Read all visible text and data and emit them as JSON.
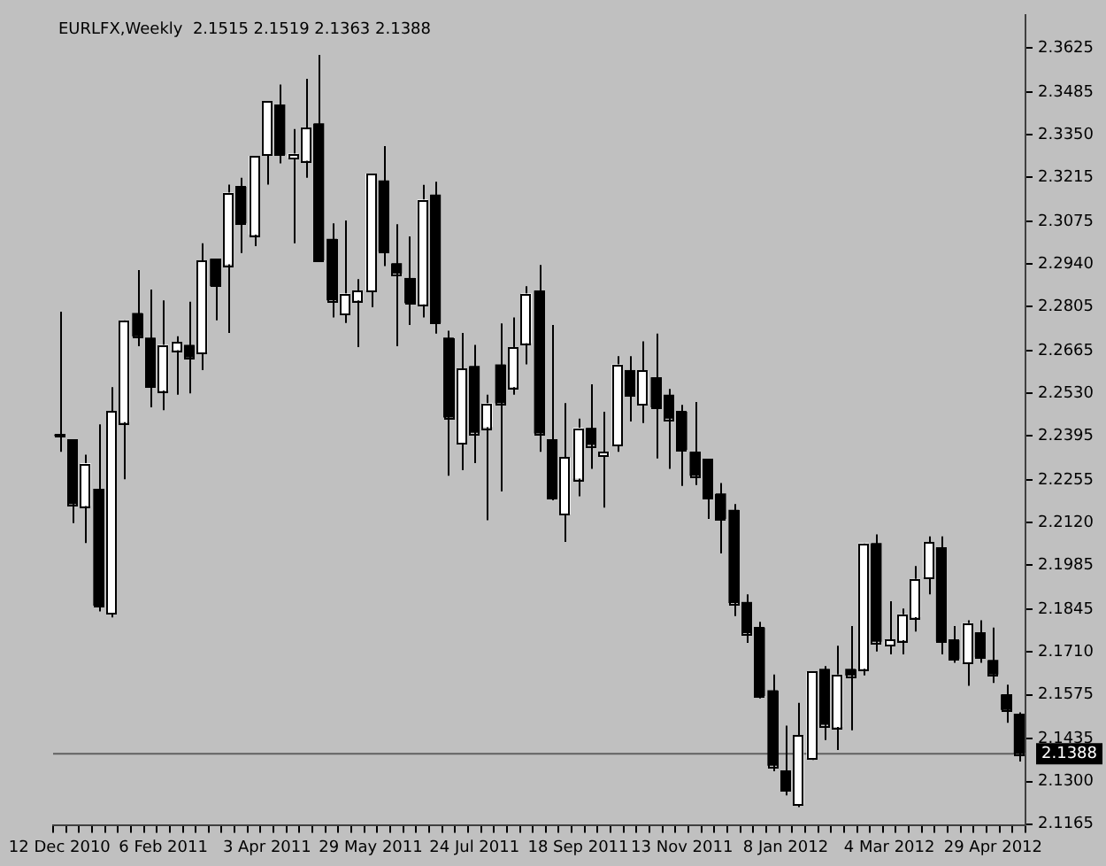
{
  "chart_data": {
    "type": "candlestick",
    "title": "EURLFX,Weekly  2.1515 2.1519 2.1363 2.1388",
    "categories": [
      "12 Dec 2010",
      null,
      null,
      null,
      null,
      null,
      null,
      null,
      "6 Feb 2011",
      null,
      null,
      null,
      null,
      null,
      null,
      null,
      "3 Apr 2011",
      null,
      null,
      null,
      null,
      null,
      null,
      null,
      "29 May 2011",
      null,
      null,
      null,
      null,
      null,
      null,
      null,
      "24 Jul 2011",
      null,
      null,
      null,
      null,
      null,
      null,
      null,
      "18 Sep 2011",
      null,
      null,
      null,
      null,
      null,
      null,
      null,
      "13 Nov 2011",
      null,
      null,
      null,
      null,
      null,
      null,
      null,
      "8 Jan 2012",
      null,
      null,
      null,
      null,
      null,
      null,
      null,
      "4 Mar 2012",
      null,
      null,
      null,
      null,
      null,
      null,
      null,
      "29 Apr 2012",
      null,
      null
    ],
    "ohlc": [
      [
        2.24,
        2.2789,
        2.2345,
        2.2395
      ],
      [
        2.2385,
        2.2385,
        2.2119,
        2.2179
      ],
      [
        2.2173,
        2.2336,
        2.2056,
        2.2309
      ],
      [
        2.2228,
        2.2432,
        2.1839,
        2.1857
      ],
      [
        2.1833,
        2.255,
        2.182,
        2.2472
      ],
      [
        2.2439,
        2.2762,
        2.2258,
        2.2762
      ],
      [
        2.2785,
        2.2921,
        2.268,
        2.2711
      ],
      [
        2.2707,
        2.2859,
        2.2486,
        2.2553
      ],
      [
        2.2539,
        2.2825,
        2.2477,
        2.2684
      ],
      [
        2.2667,
        2.2711,
        2.2526,
        2.2693
      ],
      [
        2.2684,
        2.2821,
        2.253,
        2.2644
      ],
      [
        2.266,
        2.3006,
        2.2604,
        2.2952
      ],
      [
        2.2957,
        2.2957,
        2.2762,
        2.287
      ],
      [
        2.2939,
        2.3192,
        2.2722,
        2.3167
      ],
      [
        2.3185,
        2.3214,
        2.2975,
        2.3069
      ],
      [
        2.3033,
        2.3283,
        2.2997,
        2.3283
      ],
      [
        2.3287,
        2.3455,
        2.3192,
        2.3455
      ],
      [
        2.3446,
        2.3509,
        2.3259,
        2.3287
      ],
      [
        2.3277,
        2.3368,
        2.3006,
        2.329
      ],
      [
        2.3268,
        2.3527,
        2.3214,
        2.3372
      ],
      [
        2.3386,
        2.3603,
        2.2952,
        2.2952
      ],
      [
        2.302,
        2.3069,
        2.2771,
        2.2825
      ],
      [
        2.2783,
        2.3078,
        2.2753,
        2.2847
      ],
      [
        2.2825,
        2.2892,
        2.2677,
        2.2856
      ],
      [
        2.2856,
        2.3227,
        2.2803,
        2.3227
      ],
      [
        2.3205,
        2.3314,
        2.2934,
        2.2979
      ],
      [
        2.2943,
        2.3066,
        2.268,
        2.291
      ],
      [
        2.2896,
        2.3028,
        2.2747,
        2.2816
      ],
      [
        2.2812,
        2.3191,
        2.2771,
        2.3145
      ],
      [
        2.316,
        2.3201,
        2.272,
        2.2753
      ],
      [
        2.2707,
        2.2729,
        2.2269,
        2.2454
      ],
      [
        2.2372,
        2.2722,
        2.2287,
        2.2608
      ],
      [
        2.2617,
        2.2684,
        2.2309,
        2.2405
      ],
      [
        2.2423,
        2.2526,
        2.2128,
        2.2499
      ],
      [
        2.2622,
        2.2752,
        2.2219,
        2.2499
      ],
      [
        2.255,
        2.2771,
        2.2526,
        2.2677
      ],
      [
        2.2689,
        2.287,
        2.2622,
        2.2847
      ],
      [
        2.2856,
        2.2937,
        2.2345,
        2.2403
      ],
      [
        2.2385,
        2.2747,
        2.2191,
        2.2197
      ],
      [
        2.2146,
        2.2499,
        2.2059,
        2.2327
      ],
      [
        2.226,
        2.245,
        2.2204,
        2.2421
      ],
      [
        2.2421,
        2.2559,
        2.2291,
        2.2367
      ],
      [
        2.2331,
        2.2472,
        2.2168,
        2.2345
      ],
      [
        2.2367,
        2.2648,
        2.2345,
        2.2622
      ],
      [
        2.2604,
        2.2648,
        2.2441,
        2.2523
      ],
      [
        2.2496,
        2.2695,
        2.2436,
        2.2602
      ],
      [
        2.2581,
        2.272,
        2.2324,
        2.2486
      ],
      [
        2.2526,
        2.2544,
        2.2291,
        2.245
      ],
      [
        2.2472,
        2.2494,
        2.2237,
        2.2351
      ],
      [
        2.2345,
        2.2503,
        2.224,
        2.2269
      ],
      [
        2.2322,
        2.2322,
        2.2132,
        2.2197
      ],
      [
        2.2213,
        2.2246,
        2.2023,
        2.2132
      ],
      [
        2.2161,
        2.2179,
        2.1824,
        2.1866
      ],
      [
        2.1869,
        2.1893,
        2.1739,
        2.177
      ],
      [
        2.1788,
        2.1806,
        2.1563,
        2.1571
      ],
      [
        2.1589,
        2.1639,
        2.1332,
        2.135
      ],
      [
        2.1335,
        2.1477,
        2.1256,
        2.1272
      ],
      [
        2.1227,
        2.1549,
        2.1219,
        2.1446
      ],
      [
        2.1373,
        2.1648,
        2.1368,
        2.1648
      ],
      [
        2.1657,
        2.1666,
        2.1431,
        2.148
      ],
      [
        2.1473,
        2.173,
        2.14,
        2.1639
      ],
      [
        2.1657,
        2.1793,
        2.1462,
        2.1636
      ],
      [
        2.1657,
        2.2056,
        2.1636,
        2.2056
      ],
      [
        2.2056,
        2.2083,
        2.1712,
        2.1743
      ],
      [
        2.173,
        2.1871,
        2.1703,
        2.1748
      ],
      [
        2.1748,
        2.1848,
        2.1703,
        2.183
      ],
      [
        2.1821,
        2.1983,
        2.1775,
        2.1942
      ],
      [
        2.1947,
        2.2077,
        2.1893,
        2.2059
      ],
      [
        2.2041,
        2.2077,
        2.1703,
        2.1744
      ],
      [
        2.1748,
        2.1793,
        2.1676,
        2.1688
      ],
      [
        2.1676,
        2.1811,
        2.1603,
        2.1802
      ],
      [
        2.1772,
        2.1811,
        2.1676,
        2.1694
      ],
      [
        2.1685,
        2.1788,
        2.1612,
        2.1639
      ],
      [
        2.1576,
        2.1607,
        2.1486,
        2.1527
      ],
      [
        2.1515,
        2.1519,
        2.1363,
        2.1388
      ]
    ],
    "colors": [
      "#000000",
      "#000000",
      "#ffffff",
      "#000000",
      "#ffffff",
      "#ffffff",
      "#000000",
      "#000000",
      "#ffffff",
      "#ffffff",
      "#000000",
      "#ffffff",
      "#000000",
      "#ffffff",
      "#000000",
      "#ffffff",
      "#ffffff",
      "#000000",
      "#ffffff",
      "#ffffff",
      "#000000",
      "#000000",
      "#ffffff",
      "#ffffff",
      "#ffffff",
      "#000000",
      "#000000",
      "#000000",
      "#ffffff",
      "#000000",
      "#000000",
      "#ffffff",
      "#000000",
      "#ffffff",
      "#000000",
      "#ffffff",
      "#ffffff",
      "#000000",
      "#000000",
      "#ffffff",
      "#ffffff",
      "#000000",
      "#ffffff",
      "#ffffff",
      "#000000",
      "#ffffff",
      "#000000",
      "#000000",
      "#000000",
      "#000000",
      "#000000",
      "#000000",
      "#000000",
      "#000000",
      "#000000",
      "#000000",
      "#000000",
      "#ffffff",
      "#ffffff",
      "#000000",
      "#ffffff",
      "#000000",
      "#ffffff",
      "#000000",
      "#ffffff",
      "#ffffff",
      "#ffffff",
      "#ffffff",
      "#000000",
      "#000000",
      "#ffffff",
      "#000000",
      "#000000",
      "#000000",
      "#000000"
    ],
    "ylim": [
      2.116,
      2.373
    ],
    "yticks": [
      2.1165,
      {
        "value": 2.13,
        "label": "2.1300"
      },
      2.1435,
      2.1575,
      {
        "value": 2.171,
        "label": "2.1710"
      },
      2.1845,
      2.1985,
      {
        "value": 2.212,
        "label": "2.2120"
      },
      2.2255,
      2.2395,
      {
        "value": 2.253,
        "label": "2.2530"
      },
      2.2665,
      2.2805,
      {
        "value": 2.294,
        "label": "2.2940"
      },
      2.3075,
      2.3215,
      {
        "value": 2.335,
        "label": "2.3350"
      },
      2.3485,
      2.3625
    ],
    "ref_lines": [
      {
        "axis": "y",
        "value": 2.1388,
        "label": "2.1388",
        "color": "#606060"
      }
    ],
    "grid": false,
    "legend": false
  }
}
